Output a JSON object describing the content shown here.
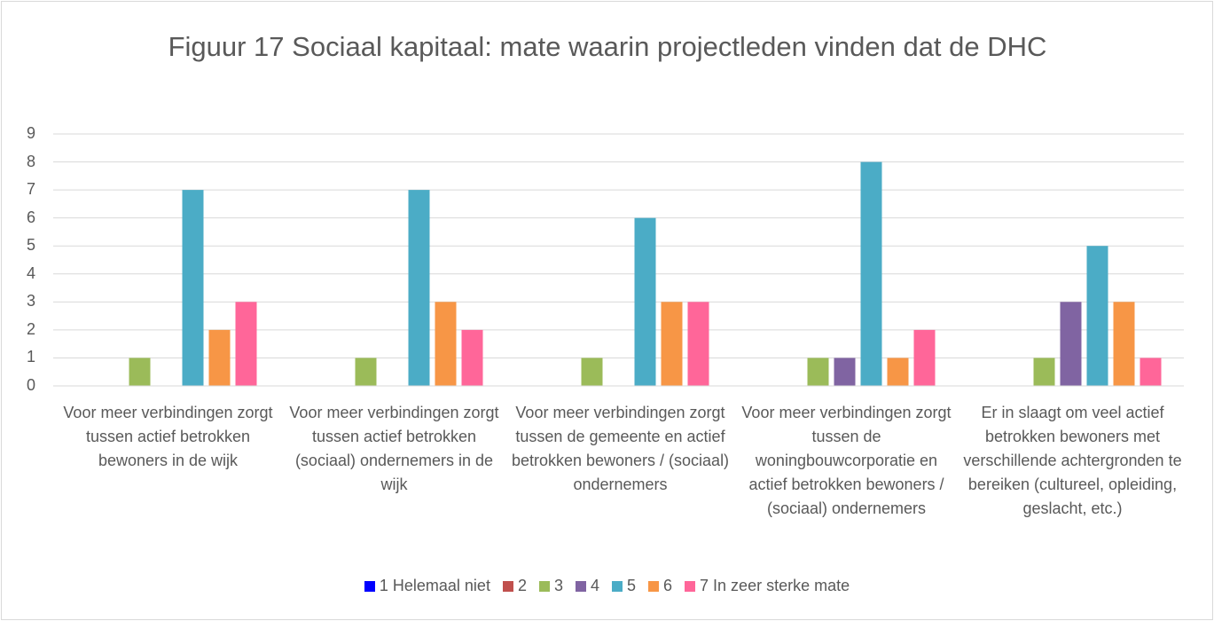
{
  "chart_data": {
    "type": "bar",
    "title": "Figuur 17 Sociaal kapitaal: mate waarin projectleden vinden dat de DHC",
    "categories": [
      "Voor meer verbindingen zorgt tussen actief betrokken bewoners in de wijk",
      "Voor meer verbindingen zorgt tussen actief betrokken (sociaal) ondernemers in de wijk",
      "Voor meer verbindingen zorgt tussen de gemeente en actief betrokken bewoners / (sociaal) ondernemers",
      "Voor meer verbindingen zorgt tussen de woningbouwcorporatie en actief betrokken bewoners / (sociaal) ondernemers",
      "Er in slaagt om veel actief betrokken bewoners met verschillende achtergronden te bereiken (cultureel, opleiding, geslacht, etc.)"
    ],
    "series": [
      {
        "name": "1 Helemaal niet",
        "color": "#0000ff",
        "values": [
          0,
          0,
          0,
          0,
          0
        ]
      },
      {
        "name": "2",
        "color": "#c0504d",
        "values": [
          0,
          0,
          0,
          0,
          0
        ]
      },
      {
        "name": "3",
        "color": "#9bbb59",
        "values": [
          1,
          1,
          1,
          1,
          1
        ]
      },
      {
        "name": "4",
        "color": "#8064a2",
        "values": [
          0,
          0,
          0,
          1,
          3
        ]
      },
      {
        "name": "5",
        "color": "#4bacc6",
        "values": [
          7,
          7,
          6,
          8,
          5
        ]
      },
      {
        "name": "6",
        "color": "#f79646",
        "values": [
          2,
          3,
          3,
          1,
          3
        ]
      },
      {
        "name": "7 In zeer sterke mate",
        "color": "#ff6699",
        "values": [
          3,
          2,
          3,
          2,
          1
        ]
      }
    ],
    "ylim": [
      0,
      9
    ],
    "yticks": [
      0,
      1,
      2,
      3,
      4,
      5,
      6,
      7,
      8,
      9
    ],
    "grid": true,
    "legend": "bottom"
  }
}
